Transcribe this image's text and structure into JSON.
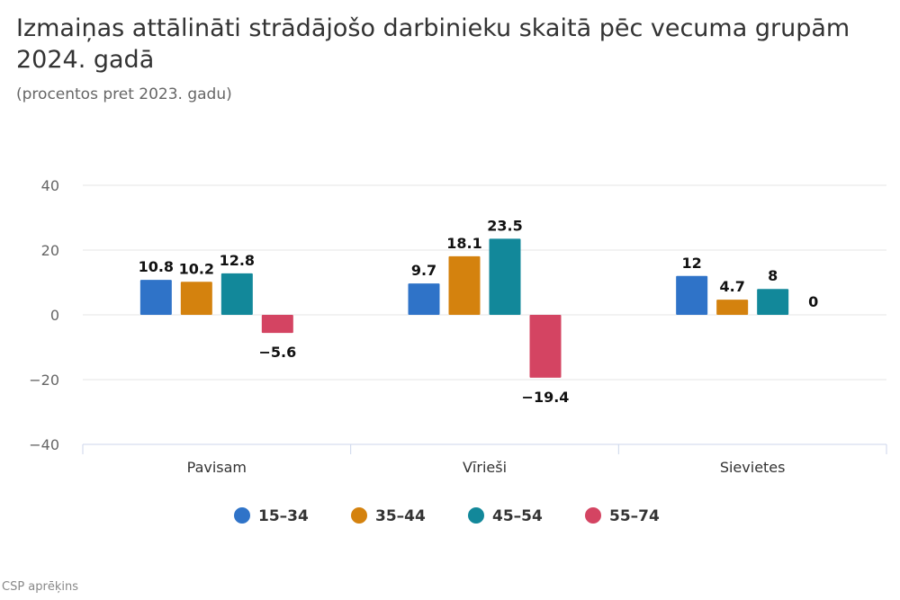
{
  "chart_data": {
    "type": "bar",
    "title": "Izmaiņas attālināti strādājošo darbinieku skaitā pēc vecuma grupām 2024. gadā",
    "subtitle": "(procentos pret 2023. gadu)",
    "categories": [
      "Pavisam",
      "Vīrieši",
      "Sievietes"
    ],
    "series": [
      {
        "name": "15–34",
        "color": "#2f73c8",
        "values": [
          10.8,
          9.7,
          12
        ],
        "labels": [
          "10.8",
          "9.7",
          "12"
        ]
      },
      {
        "name": "35–44",
        "color": "#d4820e",
        "values": [
          10.2,
          18.1,
          4.7
        ],
        "labels": [
          "10.2",
          "18.1",
          "4.7"
        ]
      },
      {
        "name": "45–54",
        "color": "#12889a",
        "values": [
          12.8,
          23.5,
          8
        ],
        "labels": [
          "12.8",
          "23.5",
          "8"
        ]
      },
      {
        "name": "55–74",
        "color": "#d44462",
        "values": [
          -5.6,
          -19.4,
          0
        ],
        "labels": [
          "−5.6",
          "−19.4",
          "0"
        ]
      }
    ],
    "yticks": [
      "−40",
      "−20",
      "0",
      "20",
      "40"
    ],
    "ylim": [
      -40,
      40
    ],
    "grid": true,
    "legend": "bottom-center"
  },
  "credits": "CSP aprēķins"
}
